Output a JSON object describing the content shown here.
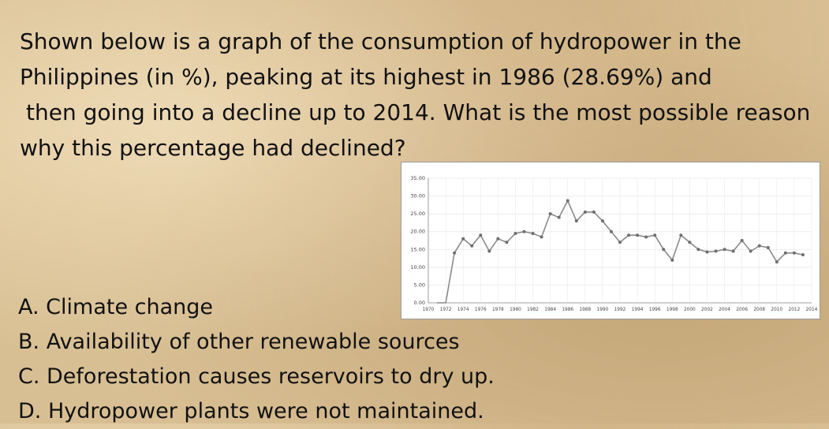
{
  "question": {
    "lines": [
      "Shown below is a graph of the consumption of hydropower in the",
      "Philippines (in %), peaking at its highest in 1986 (28.69%) and",
      "then going into a decline up to 2014. What is the most possible reason",
      "why this percentage had declined?"
    ]
  },
  "options": [
    "A. Climate change",
    "B. Availability of other renewable sources",
    "C. Deforestation causes reservoirs to dry up.",
    "D. Hydropower plants were not maintained."
  ],
  "colors": {
    "line": "#8a8a8a",
    "marker": "#6e6e6e",
    "grid": "#e6e6e6",
    "frame": "#9a9a9a"
  },
  "chart_data": {
    "type": "line",
    "title": "",
    "xlabel": "",
    "ylabel": "",
    "ylim": [
      0,
      35
    ],
    "xlim": [
      1970,
      2014
    ],
    "y_ticks": [
      "0.00",
      "5.00",
      "10.00",
      "15.00",
      "20.00",
      "25.00",
      "30.00",
      "35.00"
    ],
    "x_ticks": [
      "1970",
      "1972",
      "1974",
      "1976",
      "1978",
      "1980",
      "1982",
      "1984",
      "1986",
      "1988",
      "1990",
      "1992",
      "1994",
      "1996",
      "1998",
      "2000",
      "2002",
      "2004",
      "2006",
      "2008",
      "2010",
      "2012",
      "2014"
    ],
    "grid": true,
    "legend": "none",
    "x": [
      1971,
      1972,
      1973,
      1974,
      1975,
      1976,
      1977,
      1978,
      1979,
      1980,
      1981,
      1982,
      1983,
      1984,
      1985,
      1986,
      1987,
      1988,
      1989,
      1990,
      1991,
      1992,
      1993,
      1994,
      1995,
      1996,
      1997,
      1998,
      1999,
      2000,
      2001,
      2002,
      2003,
      2004,
      2005,
      2006,
      2007,
      2008,
      2009,
      2010,
      2011,
      2012,
      2013,
      2014
    ],
    "series": [
      {
        "values": [
          0,
          0,
          14,
          18,
          16,
          19,
          14.5,
          18,
          17,
          19.5,
          20,
          19.5,
          18.5,
          25,
          24,
          28.69,
          23,
          25.5,
          25.5,
          23,
          20,
          17,
          19,
          19,
          18.5,
          19,
          15,
          12,
          19,
          17,
          15,
          14.3,
          14.5,
          15,
          14.5,
          17.5,
          14.5,
          16,
          15.5,
          11.5,
          14,
          14,
          13.5,
          null
        ]
      }
    ]
  }
}
